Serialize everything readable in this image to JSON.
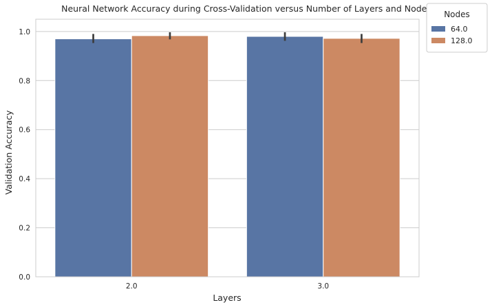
{
  "chart_data": {
    "type": "bar",
    "title": "Neural Network Accuracy during Cross-Validation versus Number of Layers and Nodes",
    "xlabel": "Layers",
    "ylabel": "Validation Accuracy",
    "categories": [
      "2.0",
      "3.0"
    ],
    "ylim": [
      0,
      1.05
    ],
    "yticks": [
      "0.0",
      "0.2",
      "0.4",
      "0.6",
      "0.8",
      "1.0"
    ],
    "grid": true,
    "legend": {
      "title": "Nodes",
      "placement": "outside-top-right"
    },
    "series": [
      {
        "name": "64.0",
        "color": "#5875a4",
        "values": [
          0.97,
          0.98
        ],
        "error_low": [
          0.953,
          0.962
        ],
        "error_high": [
          0.99,
          0.997
        ]
      },
      {
        "name": "128.0",
        "color": "#cc8963",
        "values": [
          0.983,
          0.972
        ],
        "error_low": [
          0.968,
          0.953
        ],
        "error_high": [
          0.997,
          0.99
        ]
      }
    ]
  }
}
